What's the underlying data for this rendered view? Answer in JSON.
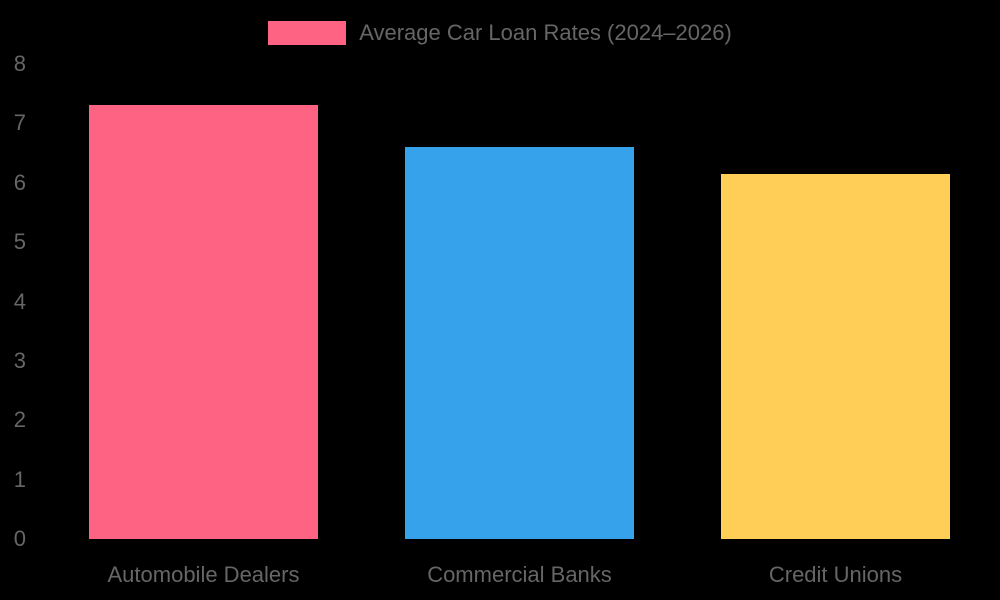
{
  "chart_data": {
    "type": "bar",
    "title": "",
    "legend": [
      {
        "label": "Average Car Loan Rates (2024–2026)",
        "color": "#FF6384"
      }
    ],
    "legend_position": "top",
    "categories": [
      "Automobile Dealers",
      "Commercial Banks",
      "Credit Unions"
    ],
    "series": [
      {
        "name": "Average Car Loan Rates (2024–2026)",
        "values": [
          7.31,
          6.6,
          6.15
        ],
        "colors": [
          "#FF6384",
          "#36A2EB",
          "#FFCE56"
        ]
      }
    ],
    "xlabel": "",
    "ylabel": "",
    "ylim": [
      0,
      8
    ],
    "yticks": [
      "0",
      "1",
      "2",
      "3",
      "4",
      "5",
      "6",
      "7",
      "8"
    ],
    "grid": false
  },
  "legend": {
    "label": "Average Car Loan Rates (2024–2026)",
    "color": "#FF6384"
  },
  "axis": {
    "y_ticks": [
      "0",
      "1",
      "2",
      "3",
      "4",
      "5",
      "6",
      "7",
      "8"
    ]
  },
  "bars": [
    {
      "label": "Automobile Dealers",
      "value": 7.31,
      "color": "#FF6384"
    },
    {
      "label": "Commercial Banks",
      "value": 6.6,
      "color": "#36A2EB"
    },
    {
      "label": "Credit Unions",
      "value": 6.15,
      "color": "#FFCE56"
    }
  ]
}
